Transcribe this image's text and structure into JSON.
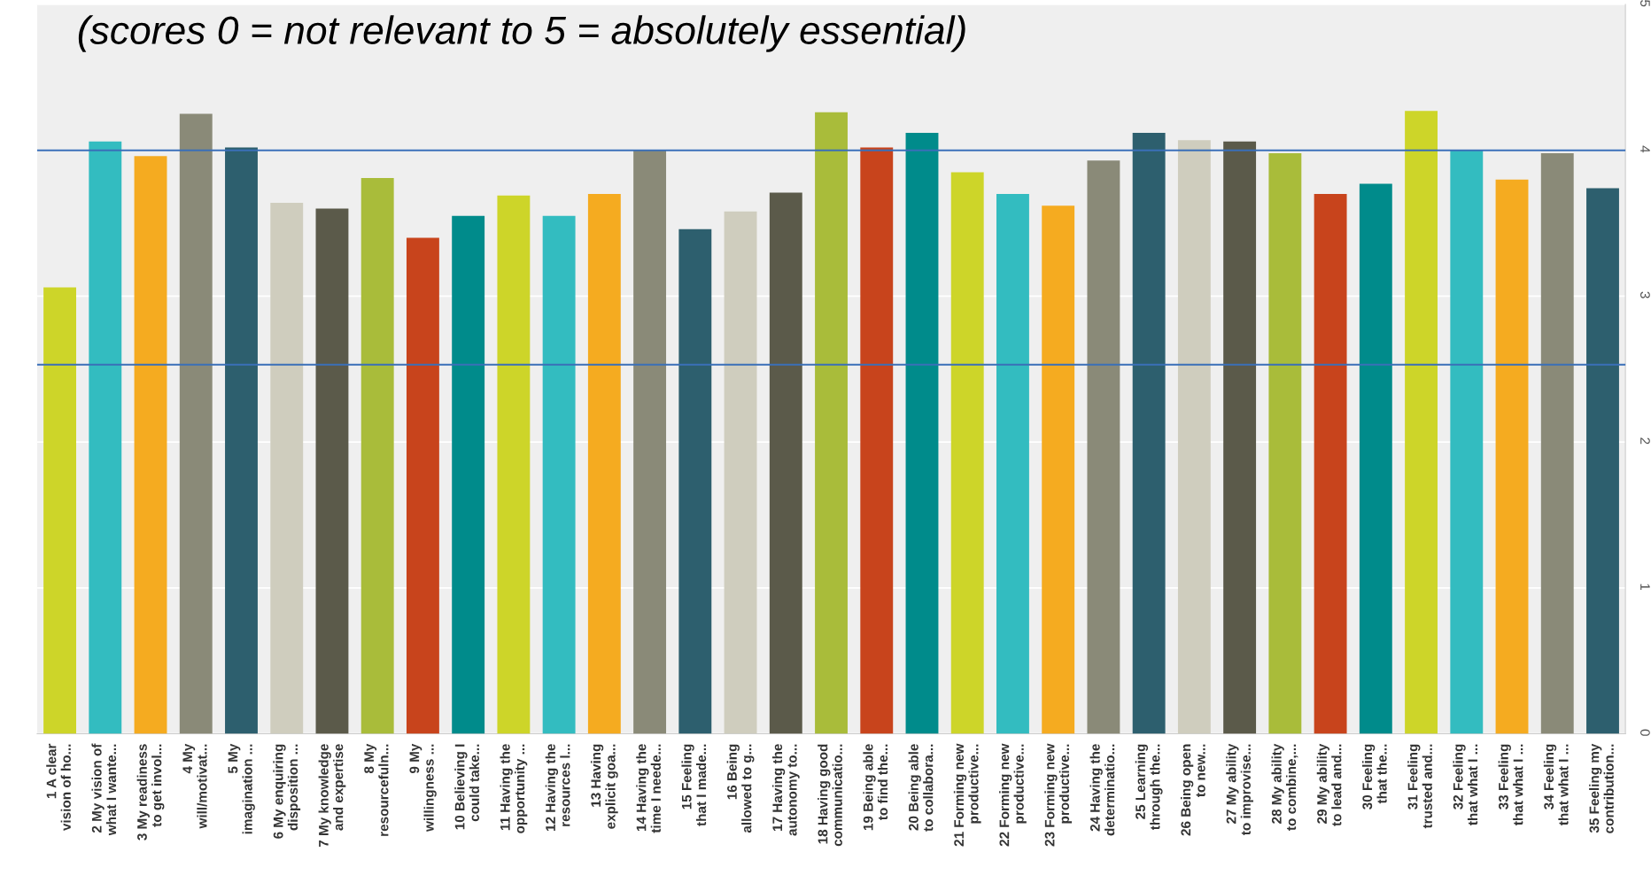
{
  "chart_data": {
    "type": "bar",
    "title": "(scores 0 = not relevant to 5 = absolutely essential)",
    "categories": [
      "1 A clear\nvision of ho...",
      "2 My vision of\nwhat I wante...",
      "3 My readiness\nto get invol...",
      "4 My\nwill/motivat...",
      "5 My\nimagination ...",
      "6 My enquiring\ndisposition ...",
      "7 My knowledge\nand expertise",
      "8 My\nresourcefuln...",
      "9 My\nwillingness ...",
      "10 Believing I\ncould take...",
      "11 Having the\nopportunity ...",
      "12 Having the\nresources l...",
      "13 Having\nexplicit goa...",
      "14 Having the\ntime I neede...",
      "15 Feeling\nthat I made...",
      "16 Being\nallowed to g...",
      "17 Having the\nautonomy to...",
      "18 Having good\ncommunicatio...",
      "19 Being able\nto find the...",
      "20 Being able\nto collabora...",
      "21 Forming new\nproductive...",
      "22 Forming new\nproductive...",
      "23 Forming new\nproductive...",
      "24 Having the\ndeterminatio...",
      "25 Learning\nthrough the...",
      "26 Being open\nto new...",
      "27 My ability\nto improvise...",
      "28 My ability\nto combine,...",
      "29 My ability\nto lead and...",
      "30 Feeling\nthat the...",
      "31 Feeling\ntrusted and...",
      "32 Feeling\nthat what I ...",
      "33 Feeling\nthat what I ...",
      "34 Feeling\nthat what I ...",
      "35 Feeling my\ncontribution..."
    ],
    "values": [
      3.06,
      4.06,
      3.96,
      4.25,
      4.02,
      3.64,
      3.6,
      3.81,
      3.4,
      3.55,
      3.69,
      3.55,
      3.7,
      4.0,
      3.46,
      3.58,
      3.71,
      4.26,
      4.02,
      4.12,
      3.85,
      3.7,
      3.62,
      3.93,
      4.12,
      4.07,
      4.06,
      3.98,
      3.7,
      3.77,
      4.27,
      4.0,
      3.8,
      3.98,
      3.74
    ],
    "colors": [
      "#cdd529",
      "#33bcc0",
      "#f5ab20",
      "#8a8a78",
      "#2d5f6e",
      "#cfcdbe",
      "#5b5a4a",
      "#a9bc3a",
      "#c8441c",
      "#008b8b",
      "#cdd529",
      "#33bcc0",
      "#f5ab20",
      "#8a8a78",
      "#2d5f6e",
      "#cfcdbe",
      "#5b5a4a",
      "#a9bc3a",
      "#c8441c",
      "#008b8b",
      "#cdd529",
      "#33bcc0",
      "#f5ab20",
      "#8a8a78",
      "#2d5f6e",
      "#cfcdbe",
      "#5b5a4a",
      "#a9bc3a",
      "#c8441c",
      "#008b8b",
      "#cdd529",
      "#33bcc0",
      "#f5ab20",
      "#8a8a78",
      "#2d5f6e"
    ],
    "ylim": [
      0,
      5
    ],
    "yticks": [
      0,
      1,
      2,
      3,
      4,
      5
    ],
    "grid": "y",
    "ref_lines": [
      {
        "axis": "y",
        "value": 4.0,
        "color": "#3a6fb8"
      },
      {
        "axis": "y",
        "value": 2.53,
        "color": "#3a6fb8"
      }
    ]
  }
}
